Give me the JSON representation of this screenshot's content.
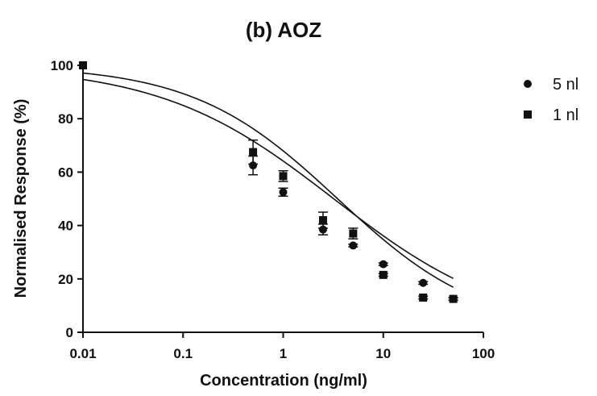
{
  "chart_data": {
    "type": "scatter",
    "title": "(b) AOZ",
    "xlabel": "Concentration (ng/ml)",
    "ylabel": "Normalised Response (%)",
    "xscale": "log",
    "xlim": [
      0.01,
      100
    ],
    "ylim": [
      0,
      100
    ],
    "x_ticks": [
      0.01,
      0.1,
      1,
      10,
      100
    ],
    "x_tick_labels": [
      "0.01",
      "0.1",
      "1",
      "10",
      "100"
    ],
    "y_ticks": [
      0,
      20,
      40,
      60,
      80,
      100
    ],
    "y_tick_labels": [
      "0",
      "20",
      "40",
      "60",
      "80",
      "100"
    ],
    "grid": false,
    "legend_position": "top-right",
    "colors": {
      "marker": "#111111",
      "line": "#111111",
      "axis": "#111111"
    },
    "series": [
      {
        "name": "5 nl",
        "marker": "circle",
        "x": [
          0.01,
          0.5,
          1,
          2.5,
          5,
          10,
          25,
          50
        ],
        "y": [
          100,
          62.5,
          52.5,
          38.5,
          32.5,
          25.5,
          18.5,
          12.5
        ],
        "err": [
          0,
          3.5,
          1.5,
          2,
          0.5,
          0.5,
          0.5,
          0.5
        ],
        "fit": {
          "top": 100,
          "bottom": 0,
          "ic50": 3.2,
          "hill": 0.5
        }
      },
      {
        "name": "1 nl",
        "marker": "square",
        "x": [
          0.01,
          0.5,
          1,
          2.5,
          5,
          10,
          25,
          50
        ],
        "y": [
          100,
          67.5,
          58.5,
          42,
          37,
          21.5,
          13,
          12.5
        ],
        "err": [
          0,
          4.5,
          2,
          3,
          2,
          0.5,
          0.5,
          0.5
        ],
        "fit": {
          "top": 100,
          "bottom": 0,
          "ic50": 3.5,
          "hill": 0.6
        }
      }
    ]
  }
}
